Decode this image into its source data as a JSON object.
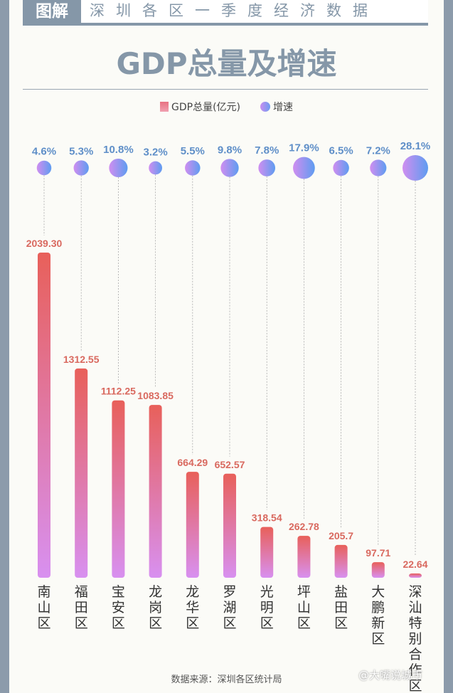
{
  "header": {
    "tag": "图解",
    "subtitle": "深圳各区一季度经济数据",
    "title": "GDP总量及增速"
  },
  "legend": {
    "gdp_label": "GDP总量(亿元)",
    "growth_label": "增速"
  },
  "source": "数据来源：深圳各区统计局",
  "watermark": "@大嘴说城市",
  "colors": {
    "bar_top": "#e8605a",
    "bar_bottom": "#d890f0",
    "bubble_left": "#d08ef0",
    "bubble_right": "#5e9cf0",
    "value_label": "#d9695f",
    "growth_label": "#5f8fc8",
    "accent": "#8597a8"
  },
  "chart_data": {
    "type": "bar",
    "title": "GDP总量及增速",
    "categories": [
      "南山区",
      "福田区",
      "宝安区",
      "龙岗区",
      "龙华区",
      "罗湖区",
      "光明区",
      "坪山区",
      "盐田区",
      "大鹏新区",
      "深汕特别合作区"
    ],
    "series": [
      {
        "name": "GDP总量(亿元)",
        "type": "bar",
        "values": [
          2039.3,
          1312.55,
          1112.25,
          1083.85,
          664.29,
          652.57,
          318.54,
          262.78,
          205.7,
          97.71,
          22.64
        ],
        "labels": [
          "2039.30",
          "1312.55",
          "1112.25",
          "1083.85",
          "664.29",
          "652.57",
          "318.54",
          "262.78",
          "205.7",
          "97.71",
          "22.64"
        ]
      },
      {
        "name": "增速",
        "type": "bubble",
        "values": [
          4.6,
          5.3,
          10.8,
          3.2,
          5.5,
          9.8,
          7.8,
          17.9,
          6.5,
          7.2,
          28.1
        ],
        "labels": [
          "4.6%",
          "5.3%",
          "10.8%",
          "3.2%",
          "5.5%",
          "9.8%",
          "7.8%",
          "17.9%",
          "6.5%",
          "7.2%",
          "28.1%"
        ]
      }
    ],
    "xlabel": "",
    "ylabel": "",
    "legend_position": "top-center",
    "grid": false
  }
}
